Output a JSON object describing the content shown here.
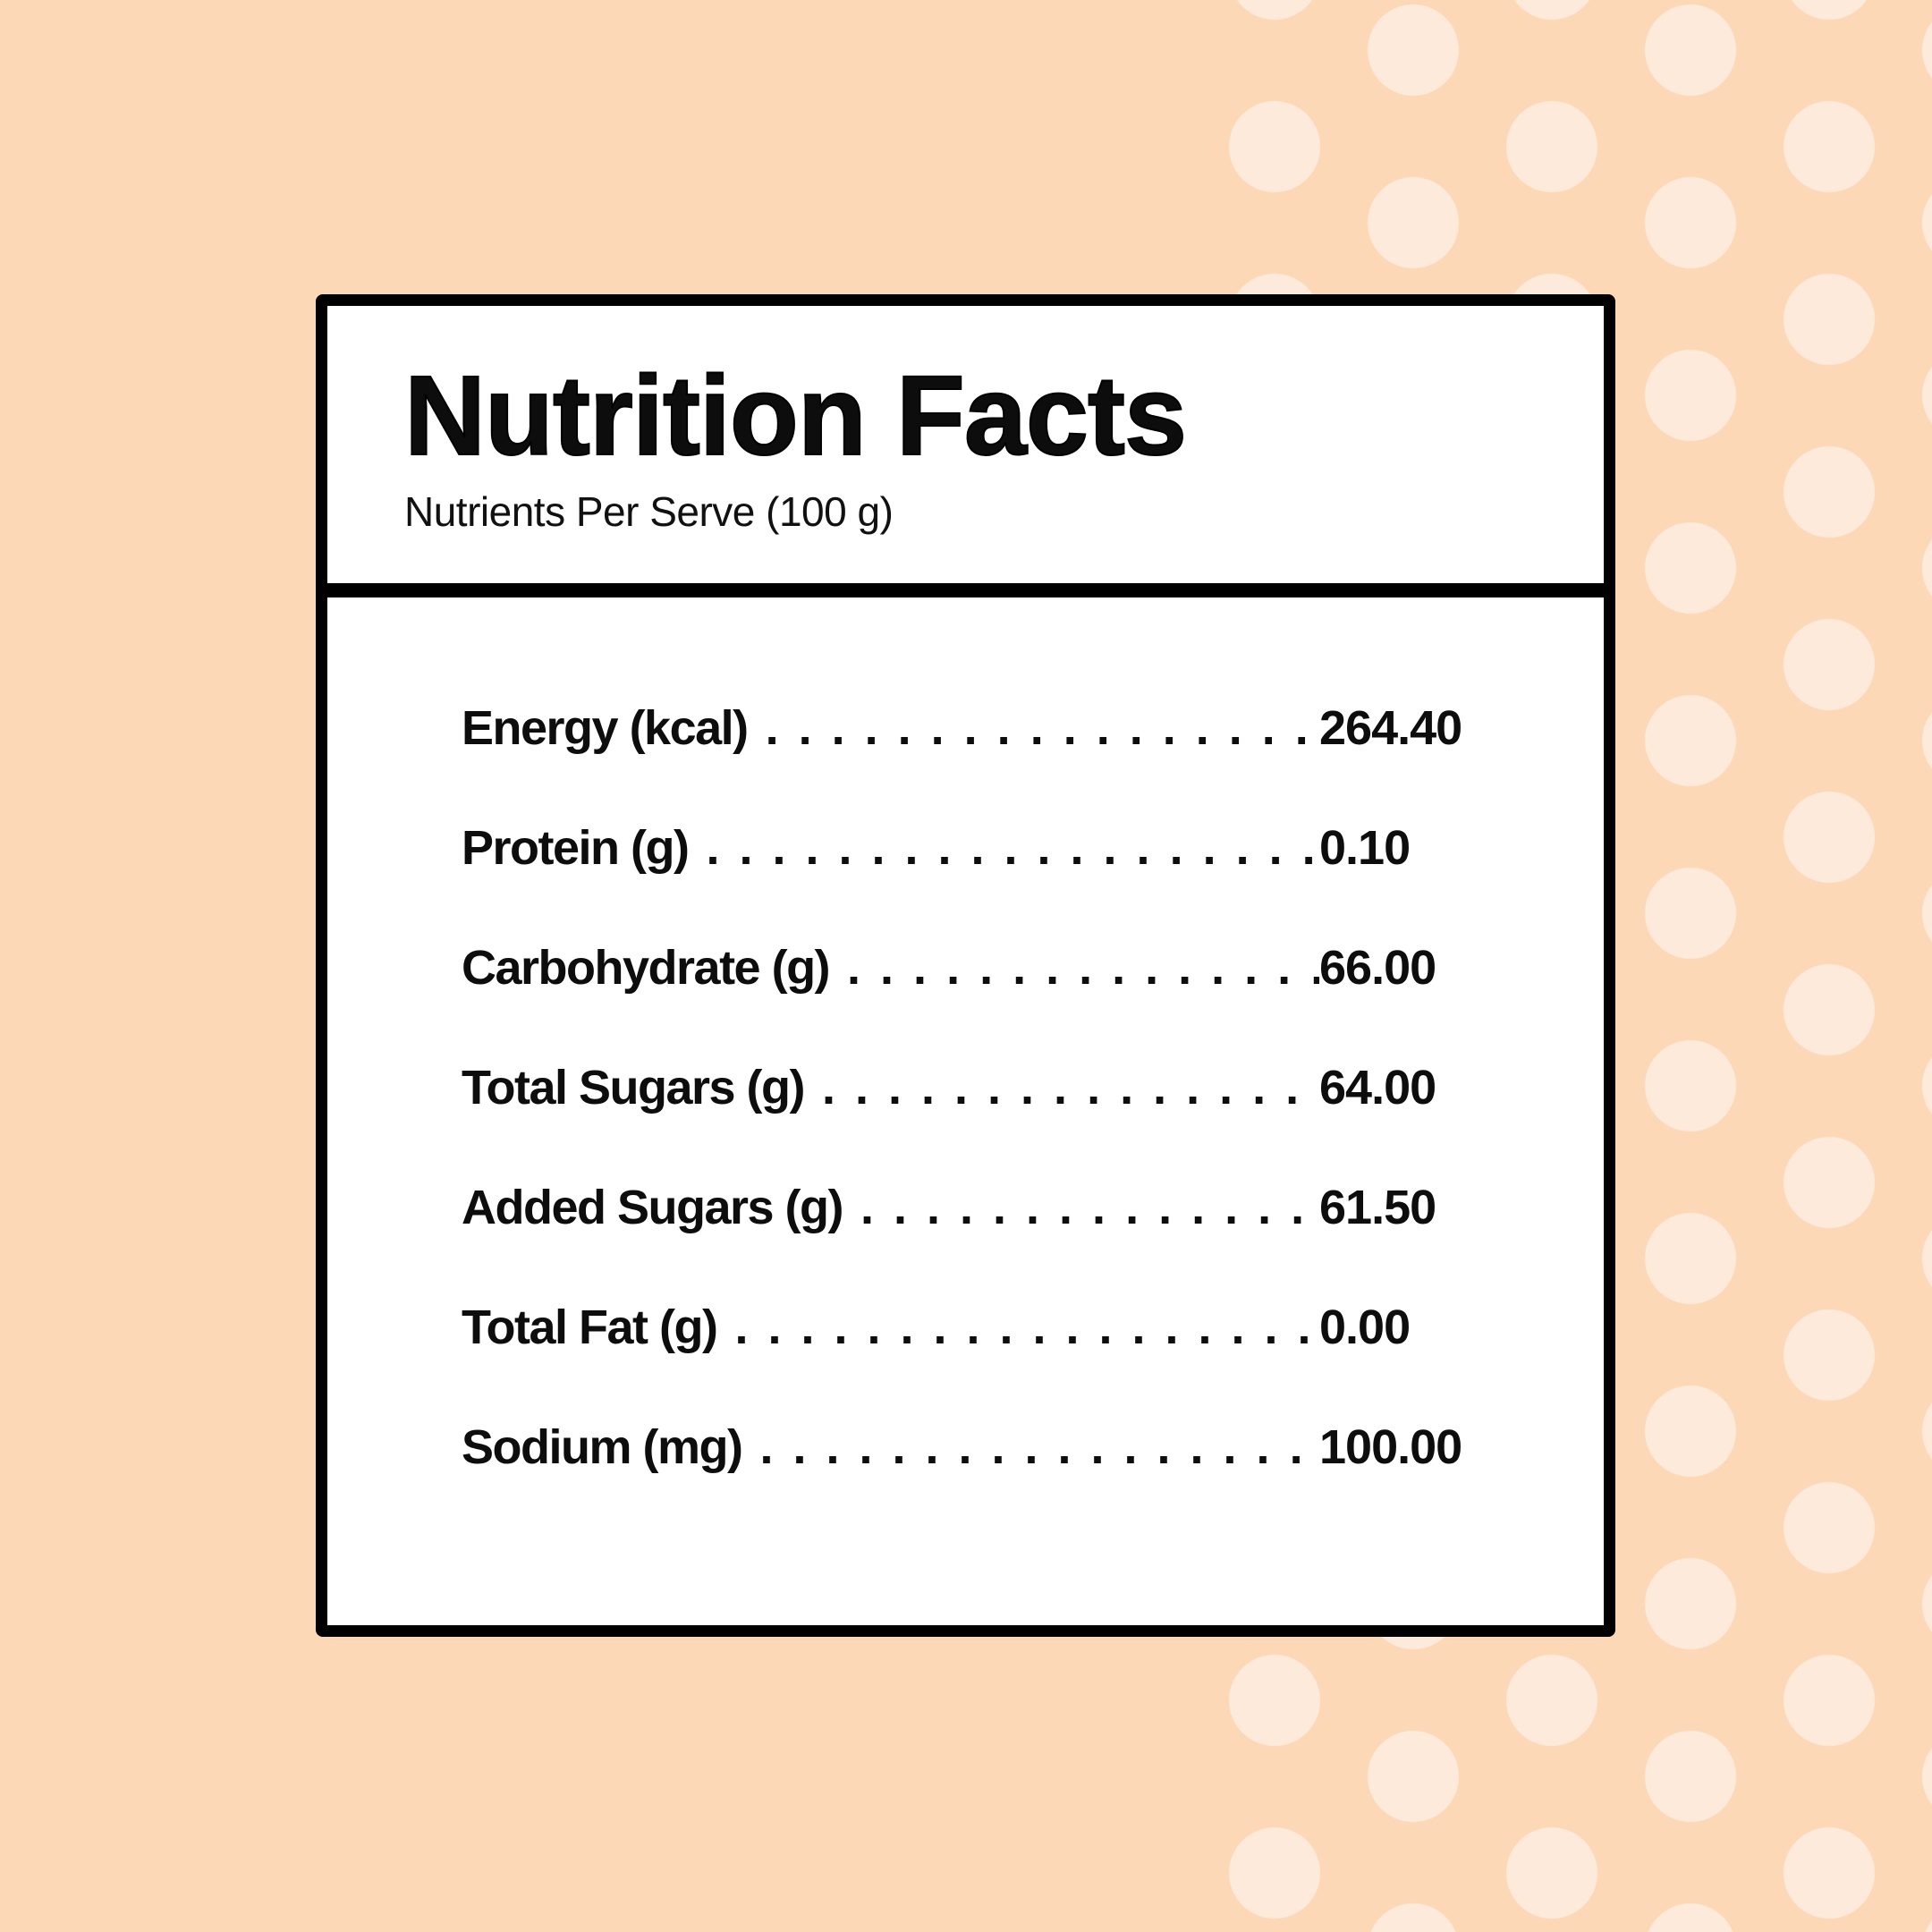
{
  "page": {
    "background_color": "#fcd8b6",
    "dot_color": "#fdeadb",
    "card_background": "#ffffff",
    "border_color": "#000000"
  },
  "label": {
    "title": "Nutrition Facts",
    "subtitle": "Nutrients Per Serve (100 g)",
    "leader_dots": ". . . . . . . . . . . . . . . . . . . . . . . . . . . . . . . . . . . . . . . .",
    "rows": [
      {
        "label": "Energy (kcal)",
        "value": "264.40"
      },
      {
        "label": "Protein (g)",
        "value": "0.10"
      },
      {
        "label": "Carbohydrate (g)",
        "value": "66.00"
      },
      {
        "label": "Total Sugars (g)",
        "value": "64.00"
      },
      {
        "label": "Added Sugars (g)",
        "value": "61.50"
      },
      {
        "label": "Total Fat (g)",
        "value": "0.00"
      },
      {
        "label": "Sodium (mg)",
        "value": "100.00"
      }
    ]
  }
}
